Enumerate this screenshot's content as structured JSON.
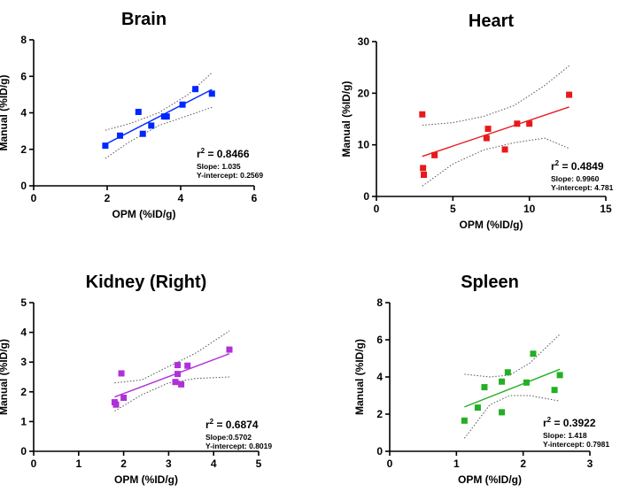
{
  "chart_data": [
    {
      "type": "scatter",
      "title": "Brain",
      "xlabel": "OPM (%ID/g)",
      "ylabel": "Manual (%ID/g)",
      "xlim": [
        0,
        6
      ],
      "ylim": [
        0,
        8
      ],
      "xticks": [
        "0",
        "2",
        "4",
        "6"
      ],
      "yticks": [
        "0",
        "2",
        "4",
        "6",
        "8"
      ],
      "color": "#0026ff",
      "points": [
        [
          1.95,
          2.2
        ],
        [
          2.35,
          2.75
        ],
        [
          2.85,
          4.05
        ],
        [
          2.97,
          2.85
        ],
        [
          3.2,
          3.3
        ],
        [
          3.55,
          3.8
        ],
        [
          3.62,
          3.8
        ],
        [
          4.05,
          4.45
        ],
        [
          4.4,
          5.3
        ],
        [
          4.85,
          5.05
        ]
      ],
      "fit": {
        "slope": 1.035,
        "intercept": 0.2569,
        "x_range": [
          1.95,
          4.85
        ]
      },
      "band_upper": [
        [
          1.95,
          3.05
        ],
        [
          2.6,
          3.4
        ],
        [
          3.4,
          4.0
        ],
        [
          4.2,
          5.0
        ],
        [
          4.85,
          6.2
        ]
      ],
      "band_lower": [
        [
          1.95,
          1.5
        ],
        [
          2.6,
          2.4
        ],
        [
          3.4,
          3.3
        ],
        [
          4.2,
          3.85
        ],
        [
          4.85,
          4.3
        ]
      ],
      "stats": {
        "r2_prefix": "r",
        "r2_value": " = 0.8466",
        "slope": "Slope: 1.035",
        "intercept": "Y-intercept: 0.2569"
      }
    },
    {
      "type": "scatter",
      "title": "Heart",
      "xlabel": "OPM (%ID/g)",
      "ylabel": "Manual (%ID/g)",
      "xlim": [
        0,
        15
      ],
      "ylim": [
        0,
        30
      ],
      "xticks": [
        "0",
        "5",
        "10",
        "15"
      ],
      "yticks": [
        "0",
        "10",
        "20",
        "30"
      ],
      "color": "#e8191b",
      "points": [
        [
          3.0,
          15.9
        ],
        [
          3.05,
          5.5
        ],
        [
          3.1,
          4.2
        ],
        [
          3.8,
          8.0
        ],
        [
          7.2,
          11.3
        ],
        [
          7.3,
          13.1
        ],
        [
          8.4,
          9.1
        ],
        [
          9.2,
          14.1
        ],
        [
          10.0,
          14.1
        ],
        [
          12.6,
          19.7
        ]
      ],
      "fit": {
        "slope": 0.996,
        "intercept": 4.781,
        "x_range": [
          3.0,
          12.6
        ]
      },
      "band_upper": [
        [
          3.0,
          13.8
        ],
        [
          5.0,
          14.3
        ],
        [
          7.0,
          15.5
        ],
        [
          9.0,
          17.6
        ],
        [
          11.0,
          21.5
        ],
        [
          12.6,
          25.3
        ]
      ],
      "band_lower": [
        [
          3.0,
          2.0
        ],
        [
          5.0,
          6.3
        ],
        [
          7.0,
          9.0
        ],
        [
          9.0,
          10.4
        ],
        [
          11.0,
          11.3
        ],
        [
          12.6,
          9.3
        ]
      ],
      "stats": {
        "r2_prefix": "r",
        "r2_value": " = 0.4849",
        "slope": "Slope: 0.9960",
        "intercept": "Y-intercept: 4.781"
      }
    },
    {
      "type": "scatter",
      "title": "Kidney (Right)",
      "xlabel": "OPM (%ID/g)",
      "ylabel": "Manual (%ID/g)",
      "xlim": [
        0,
        5
      ],
      "ylim": [
        0,
        5
      ],
      "xticks": [
        "0",
        "1",
        "2",
        "3",
        "4",
        "5"
      ],
      "yticks": [
        "0",
        "1",
        "2",
        "3",
        "4",
        "5"
      ],
      "color": "#b030d8",
      "points": [
        [
          1.8,
          1.65
        ],
        [
          1.83,
          1.57
        ],
        [
          1.95,
          2.62
        ],
        [
          2.0,
          1.8
        ],
        [
          3.15,
          2.33
        ],
        [
          3.2,
          2.9
        ],
        [
          3.2,
          2.6
        ],
        [
          3.28,
          2.25
        ],
        [
          3.42,
          2.88
        ],
        [
          4.35,
          3.42
        ]
      ],
      "fit": {
        "slope": 0.5702,
        "intercept": 0.8019,
        "x_range": [
          1.8,
          4.35
        ]
      },
      "band_upper": [
        [
          1.8,
          2.3
        ],
        [
          2.4,
          2.4
        ],
        [
          3.0,
          2.85
        ],
        [
          3.6,
          3.3
        ],
        [
          4.35,
          4.05
        ]
      ],
      "band_lower": [
        [
          1.8,
          1.35
        ],
        [
          2.4,
          1.9
        ],
        [
          3.0,
          2.3
        ],
        [
          3.6,
          2.45
        ],
        [
          4.35,
          2.5
        ]
      ],
      "stats": {
        "r2_prefix": "r",
        "r2_value": " = 0.6874",
        "slope": "Slope:0.5702",
        "intercept": "Y-intercept: 0.8019"
      }
    },
    {
      "type": "scatter",
      "title": "Spleen",
      "xlabel": "OPM (%ID/g)",
      "ylabel": "Manual (%ID/g)",
      "xlim": [
        0,
        3
      ],
      "ylim": [
        0,
        8
      ],
      "xticks": [
        "0",
        "1",
        "2",
        "3"
      ],
      "yticks": [
        "0",
        "2",
        "4",
        "6",
        "8"
      ],
      "color": "#22b022",
      "points": [
        [
          1.12,
          1.65
        ],
        [
          1.32,
          2.35
        ],
        [
          1.42,
          3.45
        ],
        [
          1.68,
          2.1
        ],
        [
          1.68,
          3.75
        ],
        [
          1.77,
          4.25
        ],
        [
          2.05,
          3.7
        ],
        [
          2.15,
          5.25
        ],
        [
          2.47,
          3.3
        ],
        [
          2.55,
          4.1
        ]
      ],
      "fit": {
        "slope": 1.418,
        "intercept": 0.7981,
        "x_range": [
          1.12,
          2.55
        ]
      },
      "band_upper": [
        [
          1.12,
          4.15
        ],
        [
          1.5,
          4.0
        ],
        [
          1.8,
          4.1
        ],
        [
          2.1,
          4.75
        ],
        [
          2.55,
          6.3
        ]
      ],
      "band_lower": [
        [
          1.12,
          0.7
        ],
        [
          1.5,
          2.5
        ],
        [
          1.8,
          3.0
        ],
        [
          2.1,
          3.0
        ],
        [
          2.55,
          2.7
        ]
      ],
      "stats": {
        "r2_prefix": "r",
        "r2_value": " = 0.3922",
        "slope": "Slope: 1.418",
        "intercept": "Y-intercept: 0.7981"
      }
    }
  ]
}
